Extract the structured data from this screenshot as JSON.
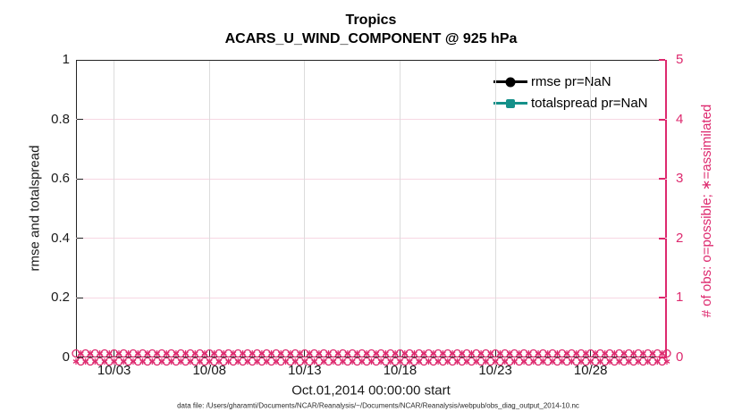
{
  "colors": {
    "pink": "#DD296E",
    "teal": "#149089",
    "black": "#000000",
    "axis": "#242424",
    "grid_gray": "#DCDCDC",
    "grid_pink": "#F7D7E3",
    "text": "#1A1A1A"
  },
  "title": {
    "line1": "Tropics",
    "line2": "ACARS_U_WIND_COMPONENT @ 925 hPa"
  },
  "left_axis": {
    "label": "rmse and totalspread",
    "ticks": [
      "0",
      "0.2",
      "0.4",
      "0.6",
      "0.8",
      "1"
    ]
  },
  "right_axis": {
    "label": "# of obs: o=possible; ∗=assimilated",
    "ticks": [
      "0",
      "1",
      "2",
      "3",
      "4",
      "5"
    ]
  },
  "x_axis": {
    "label": "Oct.01,2014 00:00:00 start",
    "ticks": [
      "10/03",
      "10/08",
      "10/13",
      "10/18",
      "10/23",
      "10/28"
    ]
  },
  "legend": {
    "items": [
      {
        "label": "rmse pr=NaN",
        "marker": "circle",
        "color": "#000000"
      },
      {
        "label": "totalspread pr=NaN",
        "marker": "square",
        "color": "#149089"
      }
    ]
  },
  "footer": "data file: /Users/gharamti/Documents/NCAR/Reanalysis/~/Documents/NCAR/Reanalysis/webpub/obs_diag_output_2014-10.nc",
  "chart_data": {
    "type": "line",
    "title": "Tropics",
    "subtitle": "ACARS_U_WIND_COMPONENT @ 925 hPa",
    "xlabel": "Oct.01,2014 00:00:00 start",
    "x_range_days": [
      1,
      32
    ],
    "x_tick_labels": [
      "10/03",
      "10/08",
      "10/13",
      "10/18",
      "10/23",
      "10/28"
    ],
    "left_axis": {
      "label": "rmse and totalspread",
      "ylim": [
        0,
        1
      ],
      "ticks": [
        0,
        0.2,
        0.4,
        0.6,
        0.8,
        1
      ]
    },
    "right_axis": {
      "label": "# of obs: o=possible; ∗=assimilated",
      "ylim": [
        0,
        5
      ],
      "ticks": [
        0,
        1,
        2,
        3,
        4,
        5
      ]
    },
    "grid": true,
    "legend_position": "top-right-inside",
    "series": [
      {
        "name": "rmse pr=NaN",
        "axis": "left",
        "style": "line+filled-circle",
        "color": "#000000",
        "values": "all NaN - no curve drawn"
      },
      {
        "name": "totalspread pr=NaN",
        "axis": "left",
        "style": "line+filled-square",
        "color": "#149089",
        "values": "all NaN - no curve drawn"
      },
      {
        "name": "obs possible (o markers)",
        "axis": "right",
        "marker": "o",
        "color": "#DD296E",
        "constant_value": 0,
        "n_points": 125
      },
      {
        "name": "obs assimilated (∗ markers)",
        "axis": "right",
        "marker": "∗",
        "color": "#DD296E",
        "constant_value": 0,
        "n_points": 125
      }
    ]
  }
}
